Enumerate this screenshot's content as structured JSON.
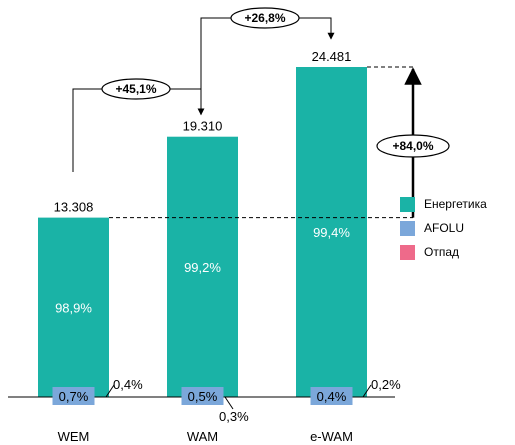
{
  "chart_data": {
    "type": "bar",
    "stacked": true,
    "categories": [
      "WEM",
      "WAM",
      "e-WAM"
    ],
    "totals": [
      13308,
      19310,
      24481
    ],
    "total_labels": [
      "13.308",
      "19.310",
      "24.481"
    ],
    "series": [
      {
        "name": "Енергетика",
        "color": "#1AB3A6",
        "share_labels": [
          "98,9%",
          "99,2%",
          "99,4%"
        ]
      },
      {
        "name": "AFOLU",
        "color": "#7BA7DA",
        "share_labels": [
          "0,7%",
          "0,5%",
          "0,4%"
        ]
      },
      {
        "name": "Отпад",
        "color": "#EE6A8A",
        "share_labels": [
          "0,4%",
          "0,3%",
          "0,2%"
        ]
      }
    ],
    "annotations": [
      {
        "from": "WEM",
        "to": "WAM",
        "text": "+45,1%"
      },
      {
        "from": "WAM",
        "to": "e-WAM",
        "text": "+26,8%"
      },
      {
        "from": "WEM",
        "to": "e-WAM",
        "text": "+84,0%"
      }
    ],
    "legend_position": "right"
  }
}
